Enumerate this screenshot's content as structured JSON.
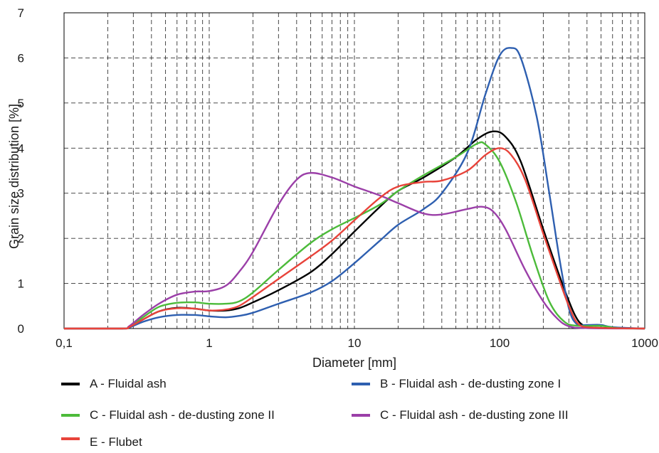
{
  "chart_data": {
    "type": "line",
    "title": "",
    "xlabel": "Diameter [mm]",
    "ylabel": "Grain size distribution [%]",
    "xscale": "log",
    "xlim": [
      0.1,
      1000
    ],
    "ylim": [
      0,
      7
    ],
    "x_tick_labels": [
      "0,1",
      "1",
      "10",
      "100",
      "1000"
    ],
    "x_tick_values": [
      0.1,
      1,
      10,
      100,
      1000
    ],
    "y_tick_labels": [
      "0",
      "1",
      "2",
      "3",
      "4",
      "5",
      "6",
      "7"
    ],
    "y_tick_values": [
      0,
      1,
      2,
      3,
      4,
      5,
      6,
      7
    ],
    "grid": true,
    "grid_style": "dashed",
    "legend_position": "bottom",
    "series": [
      {
        "name": "A - Fluidal ash",
        "color": "#000000",
        "points": [
          [
            0.1,
            0
          ],
          [
            0.25,
            0
          ],
          [
            0.28,
            0.03
          ],
          [
            0.35,
            0.2
          ],
          [
            0.45,
            0.38
          ],
          [
            0.6,
            0.46
          ],
          [
            0.8,
            0.44
          ],
          [
            1.0,
            0.4
          ],
          [
            1.3,
            0.4
          ],
          [
            1.6,
            0.45
          ],
          [
            2,
            0.58
          ],
          [
            3,
            0.85
          ],
          [
            5,
            1.25
          ],
          [
            7,
            1.65
          ],
          [
            10,
            2.15
          ],
          [
            15,
            2.7
          ],
          [
            20,
            3.05
          ],
          [
            30,
            3.35
          ],
          [
            50,
            3.8
          ],
          [
            70,
            4.2
          ],
          [
            90,
            4.37
          ],
          [
            110,
            4.25
          ],
          [
            140,
            3.7
          ],
          [
            200,
            2.2
          ],
          [
            270,
            1.0
          ],
          [
            330,
            0.3
          ],
          [
            380,
            0.06
          ],
          [
            450,
            0.02
          ],
          [
            600,
            0.01
          ],
          [
            1000,
            0
          ]
        ]
      },
      {
        "name": "B - Fluidal ash - de-dusting zone I",
        "color": "#2e5fb0",
        "points": [
          [
            0.1,
            0
          ],
          [
            0.25,
            0
          ],
          [
            0.28,
            0.02
          ],
          [
            0.35,
            0.15
          ],
          [
            0.45,
            0.25
          ],
          [
            0.6,
            0.3
          ],
          [
            0.8,
            0.3
          ],
          [
            1.0,
            0.27
          ],
          [
            1.3,
            0.25
          ],
          [
            1.6,
            0.28
          ],
          [
            2,
            0.35
          ],
          [
            3,
            0.55
          ],
          [
            5,
            0.8
          ],
          [
            7,
            1.05
          ],
          [
            10,
            1.45
          ],
          [
            15,
            1.95
          ],
          [
            20,
            2.3
          ],
          [
            30,
            2.65
          ],
          [
            40,
            3.0
          ],
          [
            60,
            3.9
          ],
          [
            80,
            5.2
          ],
          [
            100,
            6.05
          ],
          [
            120,
            6.22
          ],
          [
            140,
            6.0
          ],
          [
            180,
            4.7
          ],
          [
            220,
            3.0
          ],
          [
            260,
            1.5
          ],
          [
            300,
            0.45
          ],
          [
            340,
            0.1
          ],
          [
            400,
            0.08
          ],
          [
            500,
            0.08
          ],
          [
            600,
            0.03
          ],
          [
            1000,
            0
          ]
        ]
      },
      {
        "name": "C - Fluidal ash - de-dusting zone II",
        "color": "#4cbb3a",
        "points": [
          [
            0.1,
            0
          ],
          [
            0.25,
            0
          ],
          [
            0.28,
            0.04
          ],
          [
            0.35,
            0.25
          ],
          [
            0.45,
            0.48
          ],
          [
            0.6,
            0.57
          ],
          [
            0.8,
            0.58
          ],
          [
            1.0,
            0.55
          ],
          [
            1.3,
            0.55
          ],
          [
            1.6,
            0.6
          ],
          [
            2,
            0.8
          ],
          [
            3,
            1.3
          ],
          [
            5,
            1.9
          ],
          [
            7,
            2.2
          ],
          [
            10,
            2.45
          ],
          [
            15,
            2.75
          ],
          [
            20,
            3.05
          ],
          [
            30,
            3.4
          ],
          [
            50,
            3.8
          ],
          [
            70,
            4.1
          ],
          [
            80,
            4.08
          ],
          [
            100,
            3.7
          ],
          [
            130,
            2.8
          ],
          [
            170,
            1.6
          ],
          [
            220,
            0.6
          ],
          [
            280,
            0.15
          ],
          [
            350,
            0.06
          ],
          [
            500,
            0.06
          ],
          [
            650,
            0.01
          ],
          [
            1000,
            0
          ]
        ]
      },
      {
        "name": "C - Fluidal ash - de-dusting zone III",
        "color": "#9b3fa8",
        "points": [
          [
            0.1,
            0
          ],
          [
            0.25,
            0
          ],
          [
            0.28,
            0.05
          ],
          [
            0.35,
            0.3
          ],
          [
            0.45,
            0.55
          ],
          [
            0.6,
            0.75
          ],
          [
            0.8,
            0.82
          ],
          [
            1.0,
            0.83
          ],
          [
            1.3,
            0.95
          ],
          [
            1.6,
            1.25
          ],
          [
            2,
            1.7
          ],
          [
            3,
            2.75
          ],
          [
            4,
            3.3
          ],
          [
            5,
            3.45
          ],
          [
            7,
            3.35
          ],
          [
            10,
            3.15
          ],
          [
            15,
            2.95
          ],
          [
            20,
            2.78
          ],
          [
            30,
            2.55
          ],
          [
            40,
            2.53
          ],
          [
            60,
            2.65
          ],
          [
            75,
            2.7
          ],
          [
            90,
            2.6
          ],
          [
            110,
            2.2
          ],
          [
            150,
            1.3
          ],
          [
            200,
            0.6
          ],
          [
            250,
            0.22
          ],
          [
            300,
            0.05
          ],
          [
            400,
            0.01
          ],
          [
            1000,
            0
          ]
        ]
      },
      {
        "name": "E - Flubet",
        "color": "#e8433a",
        "points": [
          [
            0.1,
            0
          ],
          [
            0.25,
            0
          ],
          [
            0.28,
            0.03
          ],
          [
            0.35,
            0.2
          ],
          [
            0.45,
            0.38
          ],
          [
            0.6,
            0.45
          ],
          [
            0.8,
            0.44
          ],
          [
            1.0,
            0.4
          ],
          [
            1.3,
            0.42
          ],
          [
            1.6,
            0.5
          ],
          [
            2,
            0.7
          ],
          [
            3,
            1.1
          ],
          [
            5,
            1.6
          ],
          [
            7,
            1.95
          ],
          [
            10,
            2.4
          ],
          [
            15,
            2.9
          ],
          [
            20,
            3.15
          ],
          [
            30,
            3.25
          ],
          [
            40,
            3.28
          ],
          [
            60,
            3.5
          ],
          [
            80,
            3.85
          ],
          [
            100,
            4.0
          ],
          [
            120,
            3.85
          ],
          [
            150,
            3.3
          ],
          [
            200,
            2.1
          ],
          [
            250,
            1.2
          ],
          [
            300,
            0.5
          ],
          [
            350,
            0.1
          ],
          [
            450,
            0.02
          ],
          [
            1000,
            0
          ]
        ]
      }
    ]
  }
}
